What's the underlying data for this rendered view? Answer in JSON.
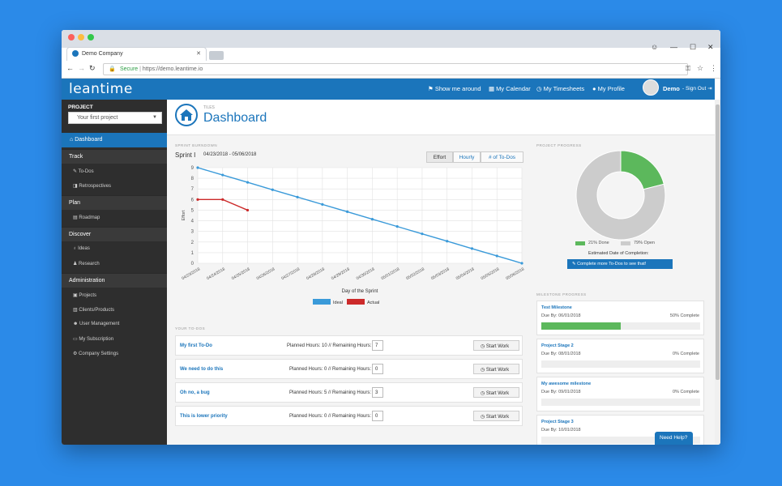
{
  "browser": {
    "tab_title": "Demo Company",
    "secure_label": "Secure",
    "url": "https://demo.leantime.io",
    "controls": [
      "—",
      "☐",
      "✕"
    ]
  },
  "header": {
    "logo": "leantime",
    "show_me_around": "Show me around",
    "my_calendar": "My Calendar",
    "my_timesheets": "My Timesheets",
    "my_profile": "My Profile",
    "user_name": "Demo",
    "sign_out": "- Sign Out"
  },
  "sidebar": {
    "project_label": "PROJECT",
    "project_value": "Your first project",
    "dashboard": "Dashboard",
    "sections": [
      {
        "label": "Track",
        "items": [
          "To-Dos",
          "Retrospectives"
        ]
      },
      {
        "label": "Plan",
        "items": [
          "Roadmap"
        ]
      },
      {
        "label": "Discover",
        "items": [
          "Ideas",
          "Research"
        ]
      },
      {
        "label": "Administration",
        "items": [
          "Projects",
          "Clients/Products",
          "User Management",
          "My Subscription",
          "Company Settings"
        ]
      }
    ]
  },
  "page": {
    "subtitle": "TILES",
    "title": "Dashboard"
  },
  "burndown": {
    "section_label": "SPRINT BURNDOWN",
    "sprint_name": "Sprint I",
    "sprint_dates": "04/23/2018 - 05/06/2018",
    "tabs": [
      "Effort",
      "Hourly",
      "# of To-Dos"
    ]
  },
  "chart_data": {
    "type": "line",
    "x": [
      "04/23/2018",
      "04/24/2018",
      "04/25/2018",
      "04/26/2018",
      "04/27/2018",
      "04/28/2018",
      "04/29/2018",
      "04/30/2018",
      "05/01/2018",
      "05/02/2018",
      "05/03/2018",
      "05/04/2018",
      "05/05/2018",
      "05/06/2018"
    ],
    "series": [
      {
        "name": "Ideal",
        "color": "#3a9ad9",
        "values": [
          9,
          8.31,
          7.62,
          6.92,
          6.23,
          5.54,
          4.85,
          4.15,
          3.46,
          2.77,
          2.08,
          1.38,
          0.69,
          0
        ]
      },
      {
        "name": "Actual",
        "color": "#cc2a2a",
        "values": [
          6,
          6,
          5,
          null,
          null,
          null,
          null,
          null,
          null,
          null,
          null,
          null,
          null,
          null
        ]
      }
    ],
    "xlabel": "Day of the Sprint",
    "ylabel": "Effort",
    "ylim": [
      0,
      9
    ],
    "yticks": [
      0,
      1,
      2,
      3,
      4,
      5,
      6,
      7,
      8,
      9
    ],
    "grid": true,
    "legend": "bottom"
  },
  "project_progress": {
    "section_label": "PROJECT PROGRESS",
    "done_pct": 21,
    "done_label": "21% Done",
    "open_label": "79% Open",
    "done_color": "#5cb85c",
    "open_color": "#cccccc",
    "estimate_label": "Estimated Date of Completion:",
    "estimate_button": "Complete more To-Dos to see that!"
  },
  "todos": {
    "section_label": "YOUR TO-DOS",
    "items": [
      {
        "name": "My first To-Do",
        "planned": "Planned Hours: 10 // Remaining Hours:",
        "remaining": "7",
        "button": "Start Work"
      },
      {
        "name": "We need to do this",
        "planned": "Planned Hours: 0 // Remaining Hours:",
        "remaining": "0",
        "button": "Start Work"
      },
      {
        "name": "Oh no, a bug",
        "planned": "Planned Hours: 5 // Remaining Hours:",
        "remaining": "3",
        "button": "Start Work"
      },
      {
        "name": "This is lower priority",
        "planned": "Planned Hours: 0 // Remaining Hours:",
        "remaining": "0",
        "button": "Start Work"
      }
    ]
  },
  "milestones": {
    "section_label": "MILESTONE PROGRESS",
    "items": [
      {
        "name": "Test Milestone",
        "due": "Due By: 06/01/2018",
        "complete": "50% Complete",
        "progress": 0.5
      },
      {
        "name": "Project Stage 2",
        "due": "Due By: 08/01/2018",
        "complete": "0% Complete",
        "progress": 0
      },
      {
        "name": "My awesome milestone",
        "due": "Due By: 09/01/2018",
        "complete": "0% Complete",
        "progress": 0
      },
      {
        "name": "Project Stage 3",
        "due": "Due By: 10/01/2018",
        "complete": "",
        "progress": 0
      }
    ]
  },
  "help_button": "Need Help?"
}
